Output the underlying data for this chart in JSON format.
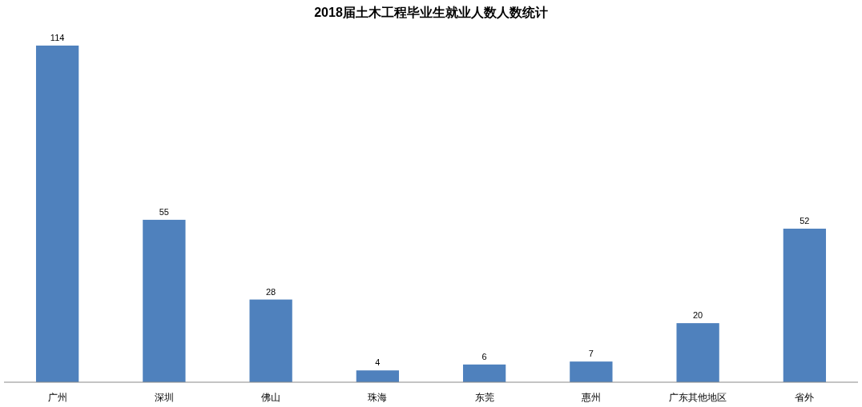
{
  "chart_data": {
    "type": "bar",
    "title": "2018届土木工程毕业生就业人数人数统计",
    "categories": [
      "广州",
      "深圳",
      "佛山",
      "珠海",
      "东莞",
      "惠州",
      "广东其他地区",
      "省外"
    ],
    "values": [
      114,
      55,
      28,
      4,
      6,
      7,
      20,
      52
    ],
    "color": "#4f81bd",
    "data_labels": true
  }
}
